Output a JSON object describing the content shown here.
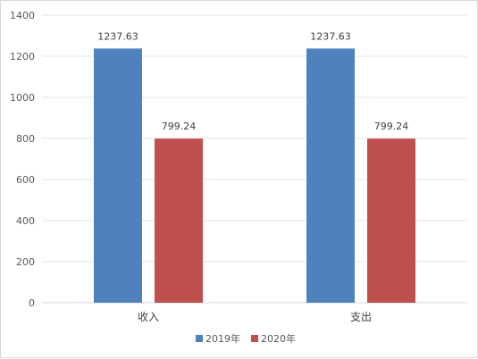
{
  "chart_data": {
    "type": "bar",
    "categories": [
      "收入",
      "支出"
    ],
    "series": [
      {
        "name": "2019年",
        "values": [
          1237.63,
          1237.63
        ],
        "color": "#4f81bd"
      },
      {
        "name": "2020年",
        "values": [
          799.24,
          799.24
        ],
        "color": "#c0504d"
      }
    ],
    "data_labels": [
      [
        "1237.63",
        "1237.63"
      ],
      [
        "799.24",
        "799.24"
      ]
    ],
    "ylim": [
      0,
      1400
    ],
    "y_ticks": [
      0,
      200,
      400,
      600,
      800,
      1000,
      1200,
      1400
    ],
    "grid": true,
    "legend_position": "bottom"
  }
}
